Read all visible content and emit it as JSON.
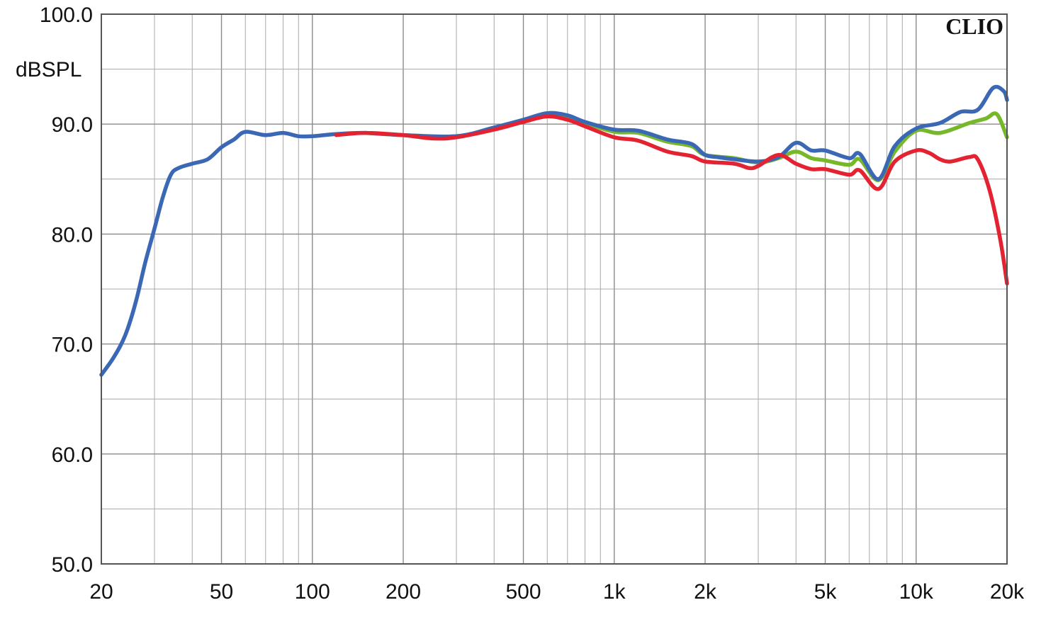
{
  "chart_data": {
    "type": "line",
    "brand": "CLIO",
    "ylabel": "dBSPL",
    "xlabel": "",
    "title": "",
    "x_scale": "log",
    "xlim": [
      20,
      20000
    ],
    "ylim": [
      50,
      100
    ],
    "grid": true,
    "x_ticks": [
      {
        "value": 20,
        "label": "20"
      },
      {
        "value": 50,
        "label": "50"
      },
      {
        "value": 100,
        "label": "100"
      },
      {
        "value": 200,
        "label": "200"
      },
      {
        "value": 500,
        "label": "500"
      },
      {
        "value": 1000,
        "label": "1k"
      },
      {
        "value": 2000,
        "label": "2k"
      },
      {
        "value": 5000,
        "label": "5k"
      },
      {
        "value": 10000,
        "label": "10k"
      },
      {
        "value": 20000,
        "label": "20k"
      }
    ],
    "y_ticks": [
      {
        "value": 100,
        "label": "100.0"
      },
      {
        "value": 90,
        "label": "90.0"
      },
      {
        "value": 80,
        "label": "80.0"
      },
      {
        "value": 70,
        "label": "70.0"
      },
      {
        "value": 60,
        "label": "60.0"
      },
      {
        "value": 50,
        "label": "50.0"
      }
    ],
    "series": [
      {
        "color": "#76b82a",
        "points": [
          [
            150,
            89.2
          ],
          [
            200,
            89.0
          ],
          [
            300,
            88.9
          ],
          [
            400,
            89.6
          ],
          [
            500,
            90.3
          ],
          [
            600,
            90.9
          ],
          [
            700,
            90.6
          ],
          [
            800,
            90.1
          ],
          [
            1000,
            89.3
          ],
          [
            1200,
            89.2
          ],
          [
            1500,
            88.4
          ],
          [
            1800,
            88.0
          ],
          [
            2000,
            87.2
          ],
          [
            2500,
            86.9
          ],
          [
            3000,
            86.5
          ],
          [
            3500,
            86.9
          ],
          [
            4000,
            87.5
          ],
          [
            4500,
            86.9
          ],
          [
            5000,
            86.7
          ],
          [
            6000,
            86.3
          ],
          [
            6500,
            86.8
          ],
          [
            7500,
            84.9
          ],
          [
            8500,
            87.5
          ],
          [
            10000,
            89.4
          ],
          [
            12000,
            89.2
          ],
          [
            15000,
            90.1
          ],
          [
            17000,
            90.5
          ],
          [
            18500,
            90.9
          ],
          [
            20000,
            88.8
          ]
        ]
      },
      {
        "color": "#3a68b5",
        "points": [
          [
            20,
            67.2
          ],
          [
            22,
            68.8
          ],
          [
            24,
            70.8
          ],
          [
            26,
            73.8
          ],
          [
            28,
            77.5
          ],
          [
            30,
            80.5
          ],
          [
            32,
            83.4
          ],
          [
            34,
            85.4
          ],
          [
            36,
            86.0
          ],
          [
            40,
            86.4
          ],
          [
            45,
            86.8
          ],
          [
            50,
            87.9
          ],
          [
            55,
            88.6
          ],
          [
            60,
            89.3
          ],
          [
            70,
            89.0
          ],
          [
            80,
            89.2
          ],
          [
            90,
            88.9
          ],
          [
            100,
            88.9
          ],
          [
            120,
            89.1
          ],
          [
            150,
            89.2
          ],
          [
            200,
            89.0
          ],
          [
            300,
            88.9
          ],
          [
            400,
            89.7
          ],
          [
            500,
            90.4
          ],
          [
            600,
            91.0
          ],
          [
            700,
            90.8
          ],
          [
            800,
            90.2
          ],
          [
            1000,
            89.5
          ],
          [
            1200,
            89.4
          ],
          [
            1500,
            88.6
          ],
          [
            1800,
            88.2
          ],
          [
            2000,
            87.2
          ],
          [
            2200,
            87.0
          ],
          [
            2500,
            86.8
          ],
          [
            3000,
            86.6
          ],
          [
            3500,
            87.0
          ],
          [
            4000,
            88.3
          ],
          [
            4500,
            87.6
          ],
          [
            5000,
            87.6
          ],
          [
            6000,
            86.9
          ],
          [
            6500,
            87.3
          ],
          [
            7500,
            85.0
          ],
          [
            8500,
            88.0
          ],
          [
            10000,
            89.6
          ],
          [
            12000,
            90.1
          ],
          [
            14000,
            91.1
          ],
          [
            16000,
            91.3
          ],
          [
            18000,
            93.3
          ],
          [
            19500,
            93.0
          ],
          [
            20000,
            92.2
          ]
        ]
      },
      {
        "color": "#e32232",
        "points": [
          [
            120,
            89.0
          ],
          [
            150,
            89.2
          ],
          [
            200,
            89.0
          ],
          [
            250,
            88.7
          ],
          [
            300,
            88.8
          ],
          [
            400,
            89.5
          ],
          [
            500,
            90.2
          ],
          [
            600,
            90.7
          ],
          [
            700,
            90.4
          ],
          [
            800,
            89.8
          ],
          [
            1000,
            88.8
          ],
          [
            1200,
            88.5
          ],
          [
            1500,
            87.5
          ],
          [
            1800,
            87.1
          ],
          [
            2000,
            86.6
          ],
          [
            2500,
            86.4
          ],
          [
            2800,
            86.0
          ],
          [
            3000,
            86.2
          ],
          [
            3500,
            87.2
          ],
          [
            4000,
            86.4
          ],
          [
            4500,
            85.9
          ],
          [
            5000,
            85.9
          ],
          [
            6000,
            85.4
          ],
          [
            6500,
            85.8
          ],
          [
            7500,
            84.1
          ],
          [
            8500,
            86.6
          ],
          [
            10000,
            87.6
          ],
          [
            11000,
            87.4
          ],
          [
            12000,
            86.8
          ],
          [
            13000,
            86.6
          ],
          [
            15000,
            87.0
          ],
          [
            16000,
            86.8
          ],
          [
            17500,
            84.0
          ],
          [
            19000,
            79.5
          ],
          [
            20000,
            75.5
          ]
        ]
      }
    ]
  }
}
